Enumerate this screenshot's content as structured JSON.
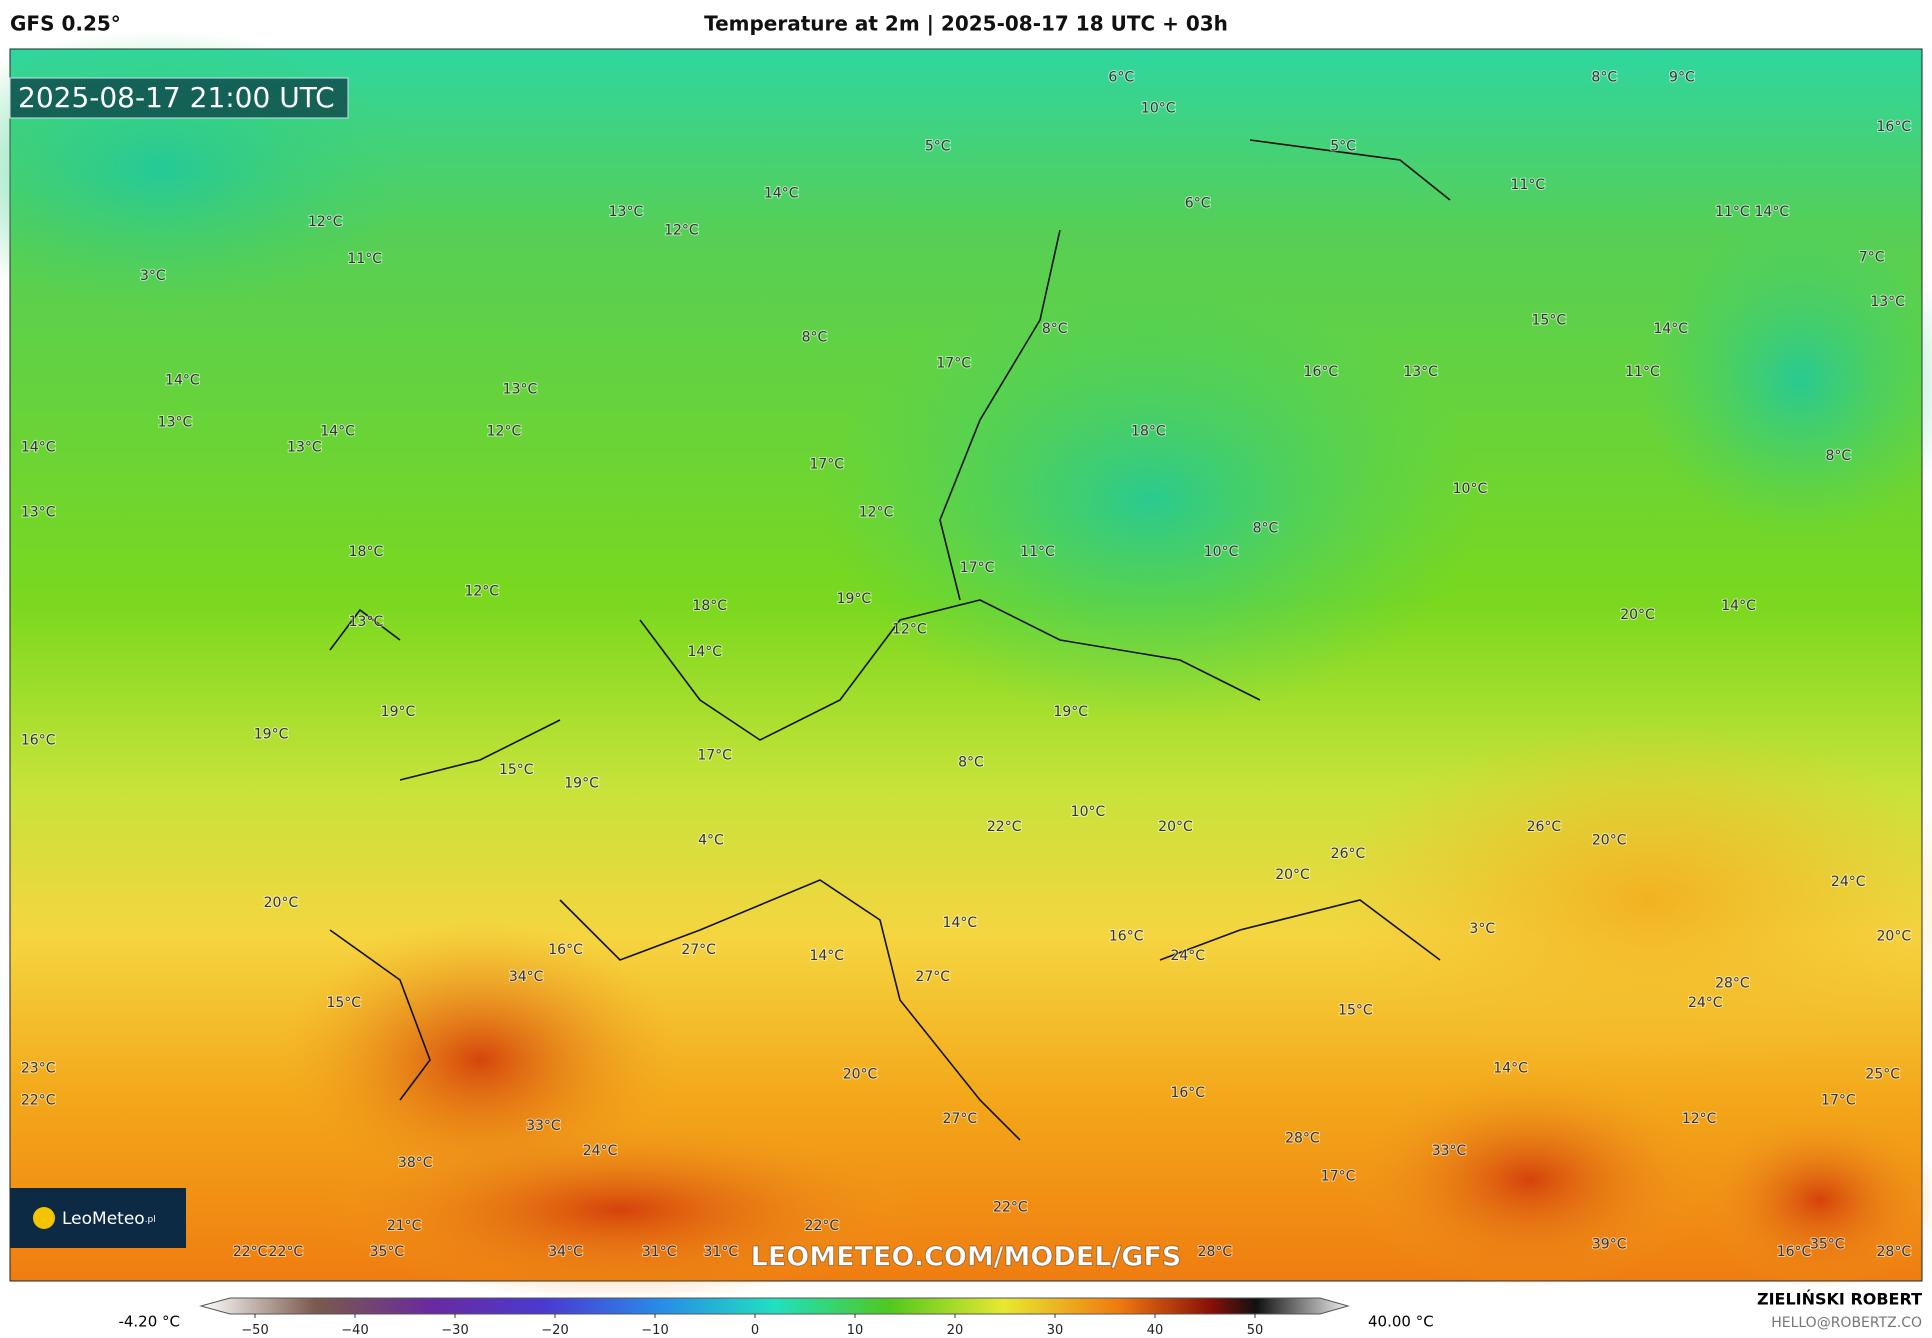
{
  "header": {
    "model": "GFS 0.25°",
    "title": "Temperature at 2m | 2025-08-17 18 UTC + 03h"
  },
  "map": {
    "valid_time": "2025-08-17 21:00 UTC",
    "watermark": "LEOMETEO.COM/MODEL/GFS",
    "logo": "LeoMeteo",
    "logo_suffix": ".pl",
    "temperature_labels": [
      "6°C",
      "10°C",
      "8°C",
      "9°C",
      "16°C",
      "5°C",
      "5°C",
      "11°C",
      "14°C",
      "13°C",
      "12°C",
      "12°C",
      "11°C",
      "6°C",
      "11°C",
      "14°C",
      "3°C",
      "7°C",
      "13°C",
      "8°C",
      "8°C",
      "15°C",
      "14°C",
      "17°C",
      "16°C",
      "13°C",
      "11°C",
      "14°C",
      "13°C",
      "13°C",
      "14°C",
      "12°C",
      "18°C",
      "14°C",
      "13°C",
      "17°C",
      "8°C",
      "10°C",
      "13°C",
      "12°C",
      "8°C",
      "18°C",
      "11°C",
      "10°C",
      "17°C",
      "12°C",
      "18°C",
      "19°C",
      "14°C",
      "20°C",
      "13°C",
      "12°C",
      "14°C",
      "19°C",
      "19°C",
      "19°C",
      "16°C",
      "17°C",
      "8°C",
      "15°C",
      "19°C",
      "10°C",
      "22°C",
      "20°C",
      "26°C",
      "20°C",
      "4°C",
      "26°C",
      "20°C",
      "24°C",
      "20°C",
      "14°C",
      "3°C",
      "16°C",
      "20°C",
      "16°C",
      "27°C",
      "14°C",
      "24°C",
      "34°C",
      "27°C",
      "28°C",
      "15°C",
      "24°C",
      "15°C",
      "23°C",
      "14°C",
      "20°C",
      "25°C",
      "16°C",
      "22°C",
      "17°C",
      "12°C",
      "27°C",
      "33°C",
      "28°C",
      "33°C",
      "24°C",
      "38°C",
      "17°C",
      "22°C",
      "21°C",
      "22°C",
      "22°C",
      "22°C",
      "35°C",
      "34°C",
      "31°C",
      "31°C",
      "28°C",
      "39°C",
      "16°C",
      "35°C",
      "28°C"
    ]
  },
  "colorbar": {
    "min_label": "-4.20 °C",
    "max_label": "40.00 °C",
    "ticks": [
      "−50",
      "−40",
      "−30",
      "−20",
      "−10",
      "0",
      "10",
      "20",
      "30",
      "40",
      "50"
    ]
  },
  "footer": {
    "author": "ZIELIŃSKI ROBERT",
    "email": "HELLO@ROBERTZ.CO"
  }
}
